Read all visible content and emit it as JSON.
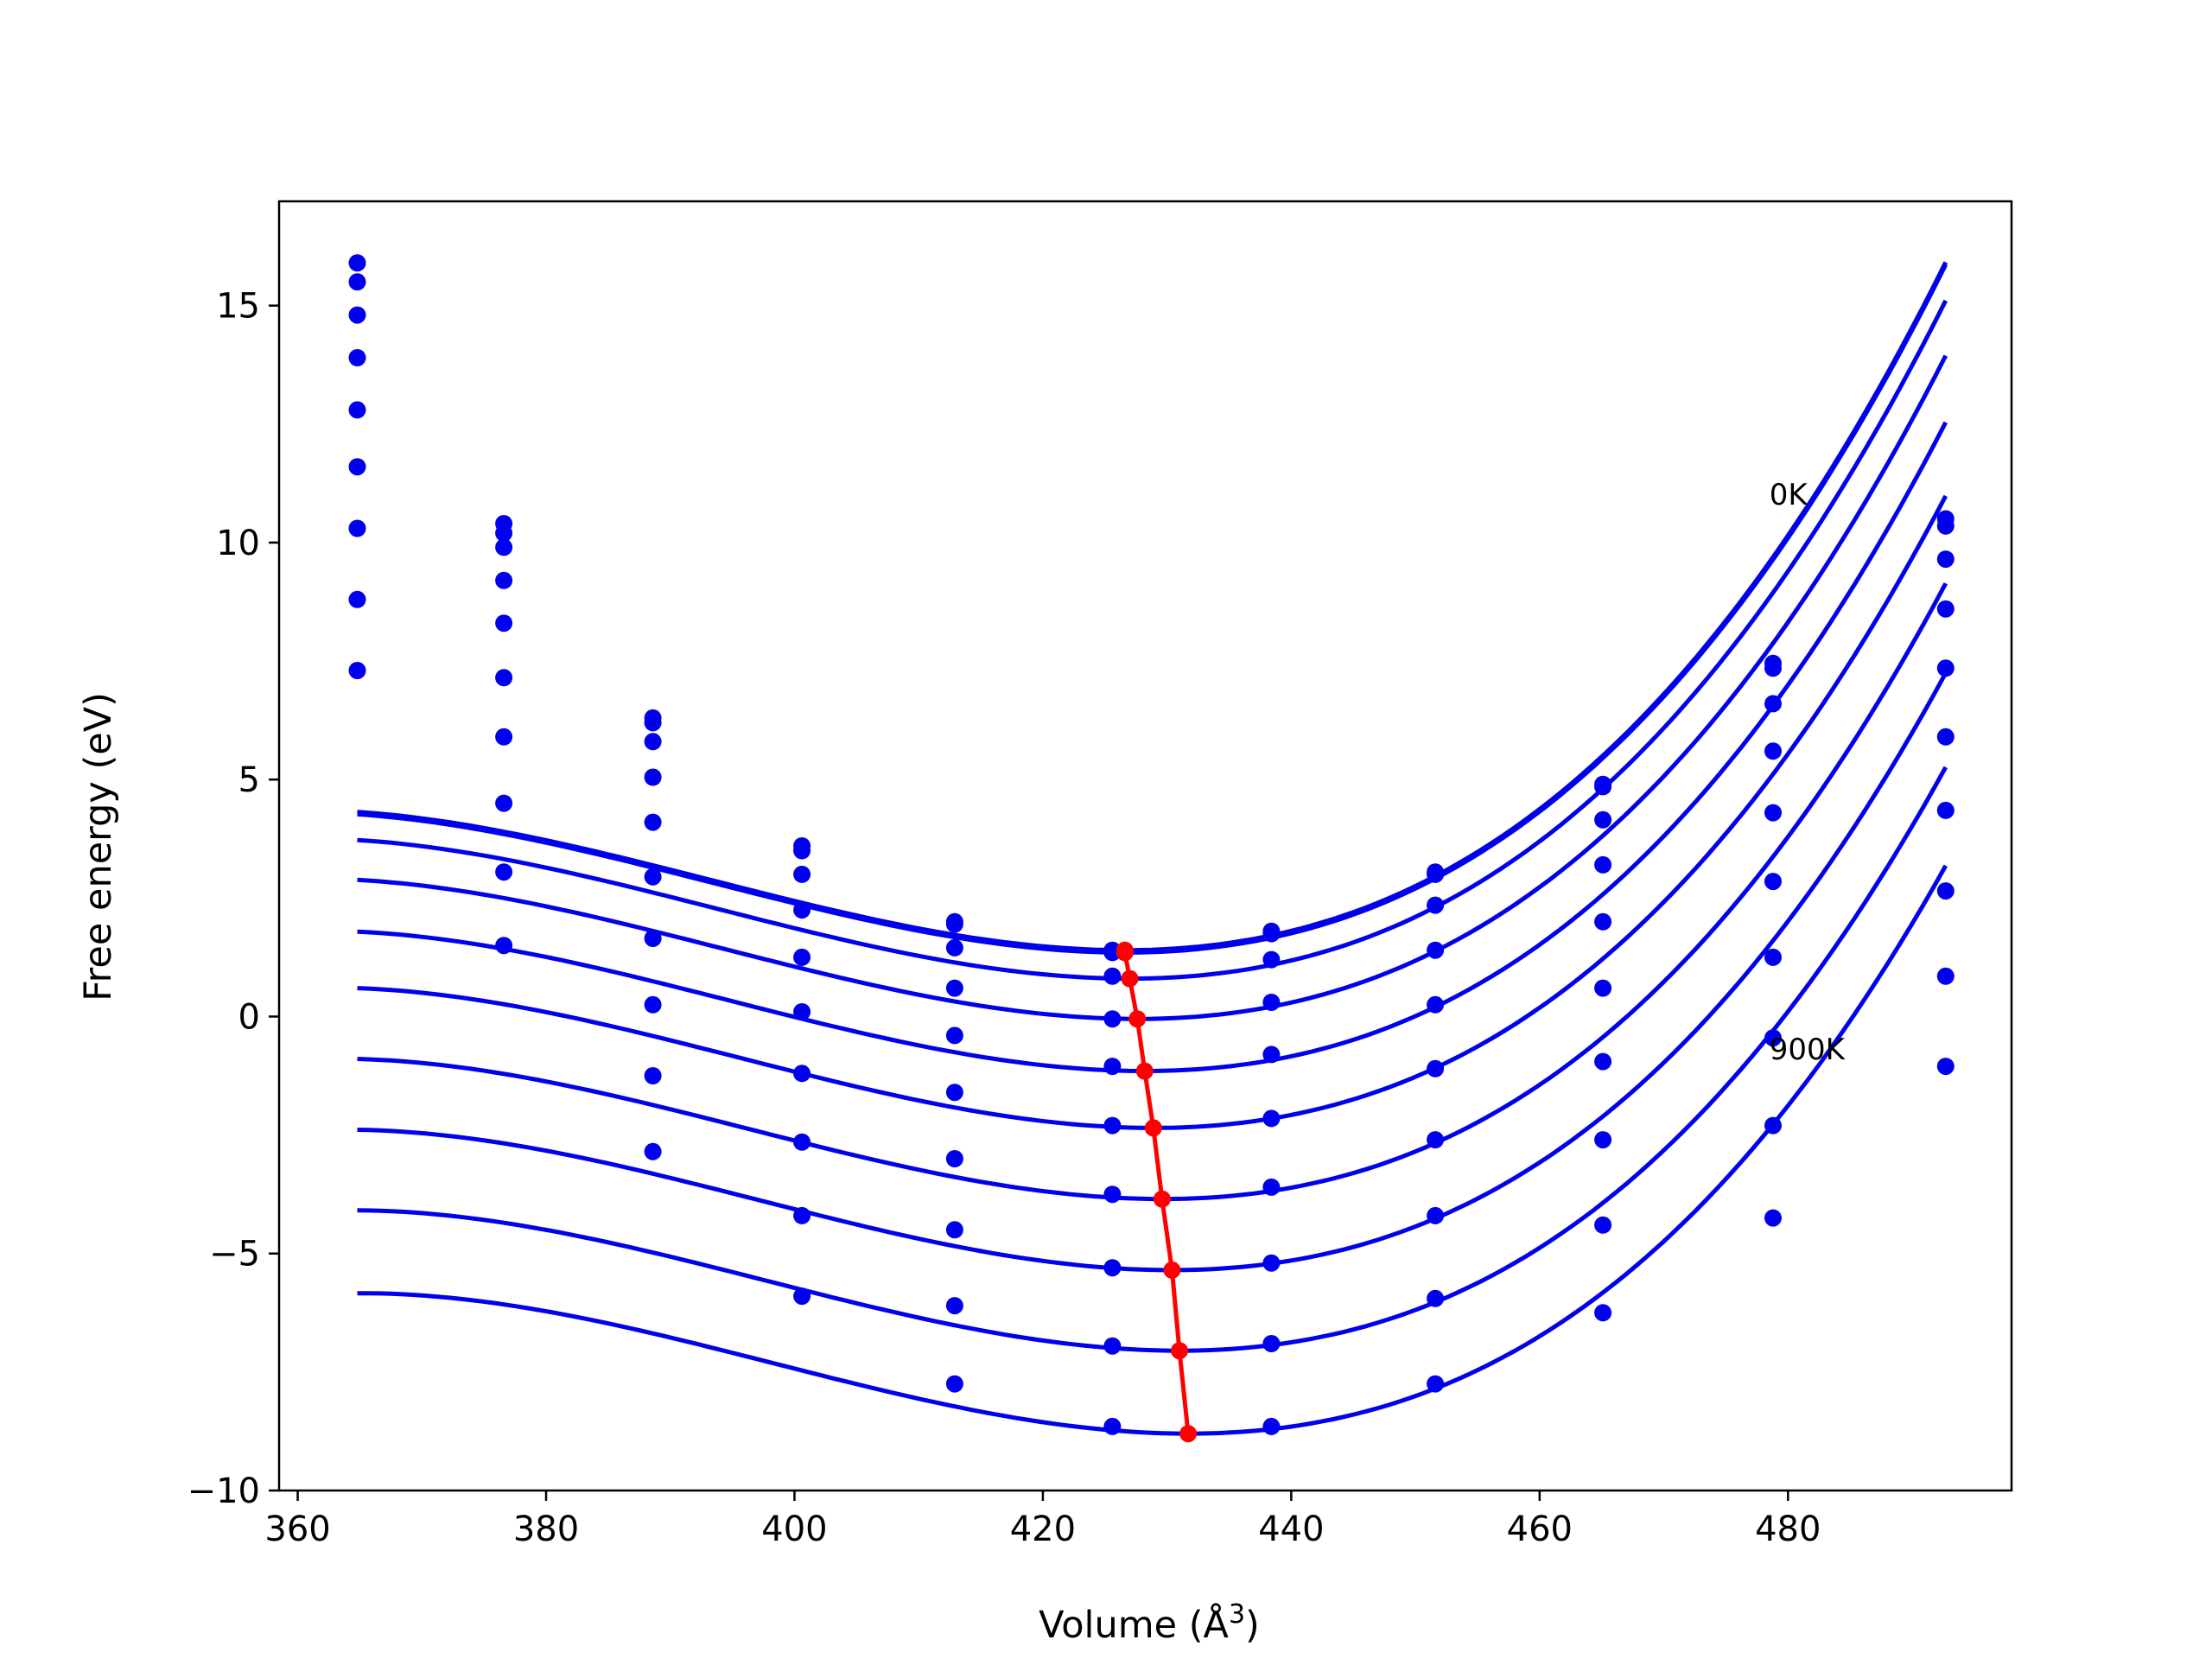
{
  "chart_data": {
    "type": "line",
    "title": "",
    "xlabel": "Volume (Å",
    "xlabel_sup": "3",
    "xlabel_close": ")",
    "ylabel": "Free energy (eV)",
    "xlim": [
      358.5,
      498
    ],
    "ylim": [
      -10,
      17.2
    ],
    "xticks": [
      360,
      380,
      400,
      420,
      440,
      460,
      480
    ],
    "xtick_labels": [
      "360",
      "380",
      "400",
      "420",
      "440",
      "460",
      "480"
    ],
    "yticks": [
      -10,
      -5,
      0,
      5,
      10,
      15
    ],
    "ytick_labels": [
      "−10",
      "−5",
      "0",
      "5",
      "10",
      "15"
    ],
    "grid": false,
    "legend": "none",
    "annotations": [
      {
        "text": "0K",
        "x": 478.5,
        "y": 10.8
      },
      {
        "text": "900K",
        "x": 478.5,
        "y": -0.9
      }
    ],
    "colors": {
      "curves": "#0000ee",
      "minimum_path": "#ff0000"
    },
    "volumes": [
      364.8,
      376.6,
      388.6,
      400.6,
      412.9,
      425.6,
      438.4,
      451.6,
      465.1,
      478.8,
      492.7
    ],
    "series": [
      {
        "fit": {
          "Vmin": 426.6,
          "Fmin": 1.4,
          "a": 0.002,
          "b": 2e-05
        },
        "points": [
          15.9,
          10.4,
          6.3,
          3.6,
          2.0,
          1.4,
          1.8,
          3.05,
          4.9,
          7.45,
          10.5
        ]
      },
      {
        "fit": {
          "Vmin": 426.6,
          "Fmin": 1.35,
          "a": 0.002,
          "b": 2e-05
        },
        "points": [
          15.5,
          10.2,
          6.2,
          3.5,
          1.95,
          1.35,
          1.75,
          3.0,
          4.85,
          7.35,
          10.35
        ]
      },
      {
        "fit": {
          "Vmin": 427.0,
          "Fmin": 0.8,
          "a": 0.002,
          "b": 2e-05
        },
        "points": [
          14.8,
          9.9,
          5.8,
          3.0,
          1.45,
          0.85,
          1.2,
          2.35,
          4.15,
          6.6,
          9.65
        ]
      },
      {
        "fit": {
          "Vmin": 427.6,
          "Fmin": -0.05,
          "a": 0.002,
          "b": 2e-05
        },
        "points": [
          13.9,
          9.2,
          5.05,
          2.25,
          0.6,
          -0.05,
          0.3,
          1.4,
          3.2,
          5.6,
          8.6
        ]
      },
      {
        "fit": {
          "Vmin": 428.2,
          "Fmin": -1.15,
          "a": 0.002,
          "b": 2e-05
        },
        "points": [
          12.8,
          8.3,
          4.1,
          1.25,
          -0.4,
          -1.05,
          -0.8,
          0.25,
          2.0,
          4.3,
          7.35
        ]
      },
      {
        "fit": {
          "Vmin": 428.9,
          "Fmin": -2.35,
          "a": 0.002,
          "b": 2e-05
        },
        "points": [
          11.6,
          7.15,
          2.95,
          0.1,
          -1.6,
          -2.3,
          -2.15,
          -1.1,
          0.6,
          2.85,
          5.9
        ]
      },
      {
        "fit": {
          "Vmin": 429.6,
          "Fmin": -3.85,
          "a": 0.002,
          "b": 2e-05
        },
        "points": [
          10.3,
          5.9,
          1.65,
          -1.2,
          -3.0,
          -3.75,
          -3.6,
          -2.6,
          -0.95,
          1.25,
          4.35
        ]
      },
      {
        "fit": {
          "Vmin": 430.4,
          "Fmin": -5.35,
          "a": 0.002,
          "b": 2e-05
        },
        "points": [
          8.8,
          4.5,
          0.25,
          -2.65,
          -4.5,
          -5.3,
          -5.2,
          -4.2,
          -2.6,
          -0.45,
          2.65
        ]
      },
      {
        "fit": {
          "Vmin": 431.0,
          "Fmin": -7.05,
          "a": 0.002,
          "b": 2e-05
        },
        "points": [
          7.3,
          3.05,
          -1.25,
          -4.2,
          -6.1,
          -6.95,
          -6.9,
          -5.95,
          -4.4,
          -2.3,
          0.85
        ]
      },
      {
        "fit": {
          "Vmin": 431.7,
          "Fmin": -8.8,
          "a": 0.002,
          "b": 2e-05
        },
        "points": [
          null,
          1.5,
          -2.85,
          -5.9,
          -7.75,
          -8.65,
          -8.65,
          -7.75,
          -6.25,
          -4.25,
          -1.05
        ]
      }
    ],
    "minimum_path": {
      "x": [
        426.6,
        426.6,
        427.0,
        427.6,
        428.2,
        428.9,
        429.6,
        430.4,
        431.0,
        431.7
      ],
      "y": [
        1.4,
        1.35,
        0.8,
        -0.05,
        -1.15,
        -2.35,
        -3.85,
        -5.35,
        -7.05,
        -8.8
      ]
    }
  }
}
